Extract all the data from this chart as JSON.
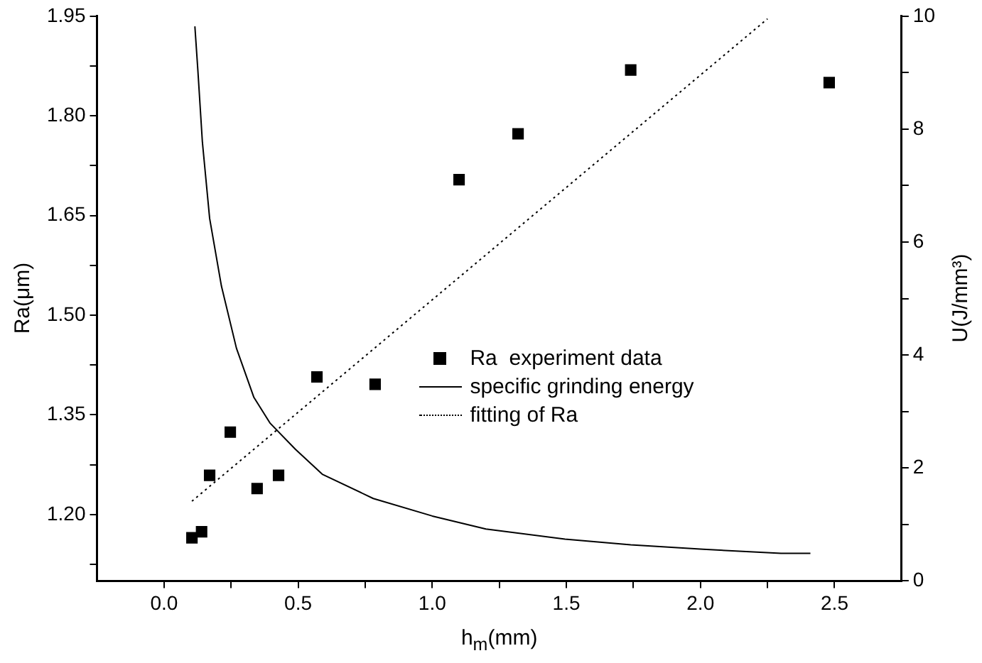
{
  "chart_data": {
    "type": "scatter",
    "xlabel": "h$_{m}$(mm)",
    "ylabel": "Ra(μm)",
    "y2label": "U(J/mm³)",
    "xlim": [
      -0.25,
      2.75
    ],
    "xticks": [
      {
        "value": 0,
        "label": "0.0"
      },
      0.5,
      {
        "value": 1,
        "label": "1.0"
      },
      1.5,
      {
        "value": 2,
        "label": "2.0"
      },
      2.5,
      {
        "value": 0.25,
        "label": null
      },
      {
        "value": 0.75,
        "label": null
      },
      {
        "value": 1.25,
        "label": null
      },
      {
        "value": 1.75,
        "label": null
      },
      {
        "value": 2.25,
        "label": null
      }
    ],
    "ylim": [
      1.1,
      1.95
    ],
    "yticks": [
      {
        "value": 1.2,
        "label": "1.20"
      },
      1.35,
      {
        "value": 1.5,
        "label": "1.50"
      },
      1.65,
      {
        "value": 1.8,
        "label": "1.80"
      },
      1.95,
      {
        "value": 1.125,
        "label": null
      },
      {
        "value": 1.275,
        "label": null
      },
      {
        "value": 1.425,
        "label": null
      },
      {
        "value": 1.575,
        "label": null
      },
      {
        "value": 1.725,
        "label": null
      },
      {
        "value": 1.875,
        "label": null
      }
    ],
    "y2lim": [
      0,
      10
    ],
    "y2ticks": [
      0,
      2,
      4,
      6,
      8,
      10,
      {
        "value": 1,
        "label": null
      },
      {
        "value": 3,
        "label": null
      },
      {
        "value": 5,
        "label": null
      },
      {
        "value": 7,
        "label": null
      },
      {
        "value": 9,
        "label": null
      }
    ],
    "grid": false,
    "legend": "right",
    "series": [
      {
        "name": "Ra  experiment data",
        "marker": "square",
        "color": "#000000",
        "x": [
          0.104,
          0.14,
          0.17,
          0.247,
          0.347,
          0.427,
          0.57,
          0.787,
          1.1,
          1.32,
          1.74,
          2.48
        ],
        "values": [
          1.165,
          1.174,
          1.259,
          1.324,
          1.239,
          1.259,
          1.407,
          1.396,
          1.704,
          1.773,
          1.869,
          1.85
        ]
      },
      {
        "name": "specific grinding energy",
        "type": "line",
        "axis": "y2",
        "marker": "none",
        "line_style": "solid",
        "color": "#000000",
        "x": [
          0.115,
          0.126,
          0.143,
          0.17,
          0.214,
          0.27,
          0.335,
          0.396,
          0.49,
          0.59,
          0.78,
          1.0,
          1.2,
          1.495,
          1.74,
          2.01,
          2.3,
          2.41
        ],
        "values": [
          9.82,
          9.05,
          7.77,
          6.42,
          5.22,
          4.12,
          3.25,
          2.79,
          2.33,
          1.89,
          1.46,
          1.15,
          0.92,
          0.74,
          0.64,
          0.56,
          0.49,
          0.49
        ]
      },
      {
        "name": "fitting of Ra",
        "type": "line",
        "marker": "none",
        "line_style": "dotted",
        "color": "#000000",
        "x": [
          0.104,
          2.25
        ],
        "values": [
          1.22,
          1.946
        ]
      }
    ]
  }
}
